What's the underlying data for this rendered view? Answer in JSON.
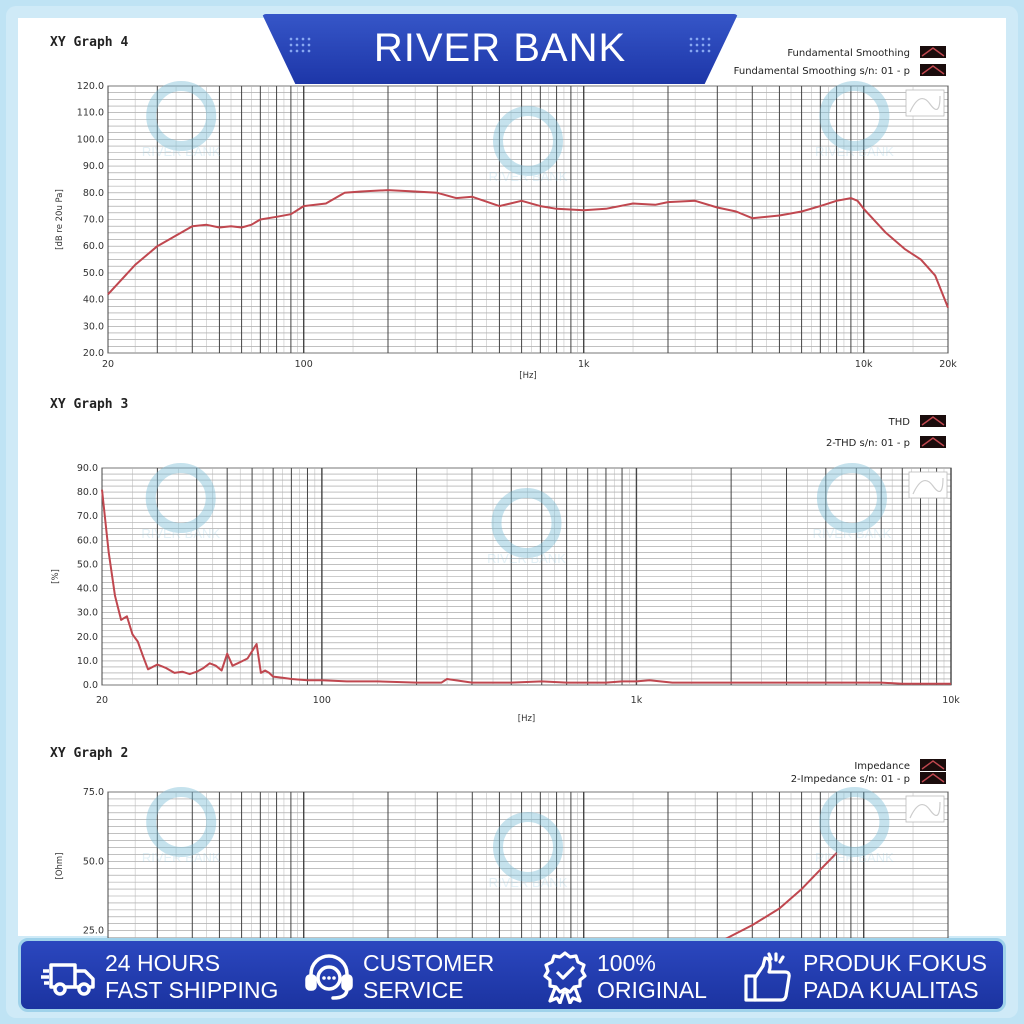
{
  "banner": {
    "title": "RIVER BANK"
  },
  "watermark": {
    "text": "RIVER BANK"
  },
  "footer": {
    "items": [
      {
        "icon": "truck-icon",
        "line1": "24 HOURS",
        "line2": "FAST SHIPPING"
      },
      {
        "icon": "headset-icon",
        "line1": "CUSTOMER",
        "line2": "SERVICE"
      },
      {
        "icon": "badge-icon",
        "line1": "100%",
        "line2": "ORIGINAL"
      },
      {
        "icon": "thumbs-up-icon",
        "line1": "PRODUK FOKUS",
        "line2": "PADA KUALITAS"
      }
    ]
  },
  "colors": {
    "curve": "#c0474f",
    "grid": "#444444",
    "banner": "#2443b8",
    "footer": "#2443b8"
  },
  "chart_data": [
    {
      "type": "line",
      "title": "XY Graph 4",
      "legend": [
        "Fundamental Smoothing",
        "Fundamental Smoothing s/n: 01 - p"
      ],
      "legend_placement": "top-right",
      "xlabel": "[Hz]",
      "ylabel": "[dB re 20u Pa]",
      "x_scale": "log",
      "xlim": [
        20,
        20000
      ],
      "ylim": [
        20,
        120
      ],
      "xticks": [
        20,
        100,
        1000,
        10000,
        20000
      ],
      "xtick_labels": [
        "20",
        "100",
        "1k",
        "10k",
        "20k"
      ],
      "yticks": [
        20,
        30,
        40,
        50,
        60,
        70,
        80,
        90,
        100,
        110,
        120
      ],
      "ytick_labels": [
        "20.0",
        "30.0",
        "40.0",
        "50.0",
        "60.0",
        "70.0",
        "80.0",
        "90.0",
        "100.0",
        "110.0",
        "120.0"
      ],
      "grid": true,
      "series": [
        {
          "x": [
            20,
            25,
            30,
            35,
            40,
            45,
            50,
            55,
            60,
            65,
            70,
            80,
            90,
            100,
            110,
            120,
            140,
            160,
            200,
            250,
            300,
            350,
            400,
            500,
            600,
            700,
            800,
            1000,
            1200,
            1500,
            1800,
            2000,
            2500,
            3000,
            3500,
            4000,
            5000,
            6000,
            7000,
            8000,
            9000,
            9500,
            10000,
            12000,
            14000,
            16000,
            18000,
            20000
          ],
          "y": [
            42,
            53,
            60,
            64,
            67.5,
            68,
            67,
            67.5,
            67,
            68,
            70,
            71,
            72,
            75,
            75.5,
            76,
            80,
            80.5,
            81,
            80.5,
            80,
            78,
            78.5,
            75,
            77,
            75,
            74,
            73.5,
            74,
            76,
            75.5,
            76.5,
            77,
            74.5,
            73,
            70.5,
            71.5,
            73,
            75,
            77,
            78,
            77,
            74,
            65,
            59,
            55,
            49,
            37
          ]
        }
      ]
    },
    {
      "type": "line",
      "title": "XY Graph 3",
      "legend": [
        "THD",
        "2-THD s/n: 01 - p"
      ],
      "legend_placement": "top-right",
      "xlabel": "[Hz]",
      "ylabel": "[%]",
      "x_scale": "log",
      "xlim": [
        20,
        10000
      ],
      "ylim": [
        0,
        90
      ],
      "xticks": [
        20,
        100,
        1000,
        10000
      ],
      "xtick_labels": [
        "20",
        "100",
        "1k",
        "10k"
      ],
      "yticks": [
        0,
        10,
        20,
        30,
        40,
        50,
        60,
        70,
        80,
        90
      ],
      "ytick_labels": [
        "0.0",
        "10.0",
        "20.0",
        "30.0",
        "40.0",
        "50.0",
        "60.0",
        "70.0",
        "80.0",
        "90.0"
      ],
      "grid": true,
      "series": [
        {
          "x": [
            20,
            21,
            22,
            23,
            24,
            25,
            26,
            27,
            28,
            30,
            32,
            34,
            36,
            38,
            40,
            42,
            44,
            46,
            48,
            50,
            52,
            54,
            56,
            58,
            60,
            62,
            64,
            66,
            68,
            70,
            75,
            80,
            90,
            100,
            120,
            150,
            200,
            240,
            250,
            300,
            400,
            500,
            600,
            700,
            800,
            900,
            1000,
            1100,
            1300,
            1500,
            2000,
            3000,
            4000,
            5000,
            6000,
            7000,
            8000,
            10000
          ],
          "y": [
            81,
            55,
            37,
            27,
            28.5,
            21,
            18,
            12,
            6.5,
            8.5,
            7,
            5,
            5.5,
            4.5,
            5.5,
            7,
            9,
            8,
            6,
            13,
            8,
            9,
            10,
            11,
            14,
            17,
            5,
            6,
            5,
            3.5,
            3,
            2.5,
            2,
            2,
            1.5,
            1.5,
            1,
            1,
            2.5,
            1,
            1,
            1.5,
            1,
            1,
            1,
            1.5,
            1.5,
            2,
            1,
            1,
            1,
            1,
            1,
            1,
            1,
            0.5,
            0.5,
            0.5
          ]
        }
      ]
    },
    {
      "type": "line",
      "title": "XY Graph 2",
      "legend": [
        "Impedance",
        "2-Impedance s/n: 01 - p"
      ],
      "legend_placement": "top-right",
      "ylabel": "[Ohm]",
      "x_scale": "log",
      "xlim": [
        20,
        20000
      ],
      "ylim": [
        0,
        75
      ],
      "yticks": [
        25,
        50,
        75
      ],
      "ytick_labels": [
        "25.0",
        "50.0",
        "75.0"
      ],
      "grid": true,
      "series": [
        {
          "x": [
            1800,
            2000,
            2500,
            3000,
            4000,
            5000,
            6000,
            7000,
            8000
          ],
          "y": [
            12,
            13.5,
            17,
            20.5,
            27,
            33,
            40,
            47,
            53
          ]
        }
      ]
    }
  ]
}
